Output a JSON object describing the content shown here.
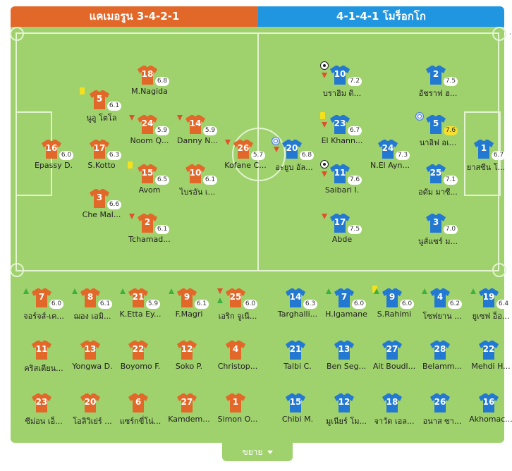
{
  "home": {
    "title": "แคเมอรูน 3-4-2-1",
    "color": "#e2682a",
    "lineup": [
      {
        "number": "16",
        "name": "Epassy D.",
        "rating": "6.0"
      },
      {
        "number": "5",
        "name": "นูอู โตโล",
        "rating": "6.1",
        "card": "yellow"
      },
      {
        "number": "17",
        "name": "S.Kotto",
        "rating": "6.3"
      },
      {
        "number": "3",
        "name": "Che Mal...",
        "rating": "6.6"
      },
      {
        "number": "18",
        "name": "M.Nagida",
        "rating": "6.8"
      },
      {
        "number": "24",
        "name": "Noom Q...",
        "rating": "5.9",
        "sub_out": true
      },
      {
        "number": "15",
        "name": "Avom",
        "rating": "6.5",
        "card": "yellow"
      },
      {
        "number": "2",
        "name": "Tchamad...",
        "rating": "6.1",
        "sub_out": true
      },
      {
        "number": "14",
        "name": "Danny N...",
        "rating": "5.9",
        "sub_out": true
      },
      {
        "number": "10",
        "name": "ไบรอัน เ...",
        "rating": "6.1"
      },
      {
        "number": "26",
        "name": "Kofane C...",
        "rating": "5.7",
        "sub_out": true
      }
    ],
    "subs": [
      {
        "number": "7",
        "name": "จอร์จส์-เค...",
        "rating": "6.0",
        "sub_in": true
      },
      {
        "number": "8",
        "name": "ฌอง เอมิ...",
        "rating": "6.1",
        "sub_in": true
      },
      {
        "number": "21",
        "name": "K.Etta Ey...",
        "rating": "5.9",
        "sub_in": true
      },
      {
        "number": "9",
        "name": "F.Magri",
        "rating": "6.1",
        "sub_in": true
      },
      {
        "number": "25",
        "name": "เอริก จูเนี...",
        "rating": "6.0",
        "sub_in": true,
        "sub_out": true
      },
      {
        "number": "11",
        "name": "คริสเตียน..."
      },
      {
        "number": "13",
        "name": "Yongwa D."
      },
      {
        "number": "22",
        "name": "Boyomo F."
      },
      {
        "number": "12",
        "name": "Soko P."
      },
      {
        "number": "4",
        "name": "Christop..."
      },
      {
        "number": "23",
        "name": "ซีม่อน เอ็..."
      },
      {
        "number": "20",
        "name": "โอลิวิเย่ร์ ..."
      },
      {
        "number": "6",
        "name": "แซร์กขี่โน่..."
      },
      {
        "number": "27",
        "name": "Kamdem..."
      },
      {
        "number": "1",
        "name": "Simon O..."
      }
    ]
  },
  "away": {
    "title": "4-1-4-1 โมร็อกโก",
    "color": "#2378d2",
    "lineup": [
      {
        "number": "20",
        "name": "อะยูบ อัล...",
        "rating": "6.8",
        "sub_out": true,
        "captain": true
      },
      {
        "number": "10",
        "name": "บราฮิม ดิ...",
        "rating": "7.2",
        "goal": true,
        "sub_out": true
      },
      {
        "number": "23",
        "name": "El Khann...",
        "rating": "6.7",
        "card": "yellow",
        "sub_out": true
      },
      {
        "number": "11",
        "name": "Saibari I.",
        "rating": "7.6",
        "goal": true,
        "sub_out": true
      },
      {
        "number": "17",
        "name": "Abde",
        "rating": "7.5",
        "sub_out": true
      },
      {
        "number": "24",
        "name": "N.El Ayn...",
        "rating": "7.3"
      },
      {
        "number": "2",
        "name": "อัชราฟ ฮ...",
        "rating": "7.5"
      },
      {
        "number": "5",
        "name": "นาอิฟ อเ...",
        "rating": "7.6",
        "captain": true
      },
      {
        "number": "25",
        "name": "อดัม มาซี...",
        "rating": "7.1"
      },
      {
        "number": "3",
        "name": "นูส์แซร์ ม...",
        "rating": "7.0"
      },
      {
        "number": "1",
        "name": "ยาสซีน โ...",
        "rating": "6.7"
      }
    ],
    "subs": [
      {
        "number": "14",
        "name": "Targhalli...",
        "rating": "6.3"
      },
      {
        "number": "7",
        "name": "H.Igamane",
        "rating": "6.0",
        "sub_in": true
      },
      {
        "number": "9",
        "name": "S.Rahimi",
        "rating": "6.0",
        "sub_in": true,
        "card": "yellow"
      },
      {
        "number": "4",
        "name": "โซฟยาน ...",
        "rating": "6.2",
        "sub_in": true
      },
      {
        "number": "19",
        "name": "ยูเซฟ อ็อ...",
        "rating": "6.4",
        "sub_in": true
      },
      {
        "number": "21",
        "name": "Talbi C."
      },
      {
        "number": "13",
        "name": "Ben Seg..."
      },
      {
        "number": "27",
        "name": "Ait Boudl..."
      },
      {
        "number": "28",
        "name": "Belamm..."
      },
      {
        "number": "22",
        "name": "Mehdi H..."
      },
      {
        "number": "15",
        "name": "Chibi M."
      },
      {
        "number": "12",
        "name": "มูเนียร์ โม..."
      },
      {
        "number": "18",
        "name": "จาวัด เอล..."
      },
      {
        "number": "26",
        "name": "อนาส ซา..."
      },
      {
        "number": "16",
        "name": "Akhomac..."
      }
    ]
  },
  "expand_label": "ขยาย",
  "side_mark": "·"
}
